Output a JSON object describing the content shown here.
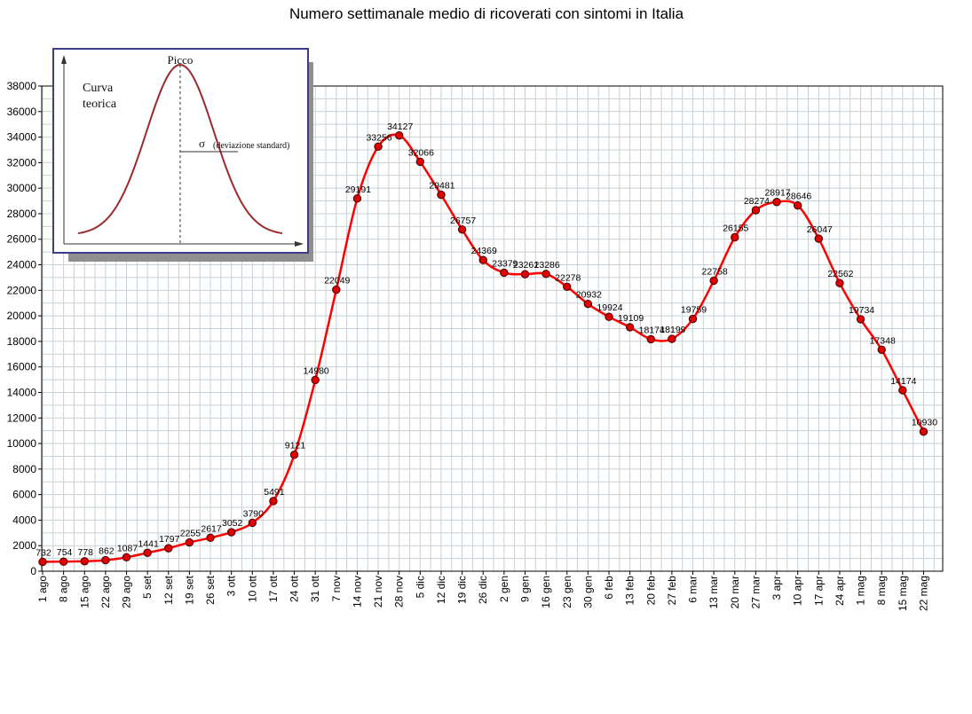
{
  "chart_data": {
    "type": "line",
    "title": "Numero settimanale medio di ricoverati con sintomi in Italia",
    "xlabel": "",
    "ylabel": "",
    "ylim": [
      0,
      38000
    ],
    "ytick_step": 2000,
    "grid": true,
    "categories": [
      "1 ago",
      "8 ago",
      "15 ago",
      "22 ago",
      "29 ago",
      "5 set",
      "12 set",
      "19 set",
      "26 set",
      "3 ott",
      "10 ott",
      "17 ott",
      "24 ott",
      "31 ott",
      "7 nov",
      "14 nov",
      "21 nov",
      "28 nov",
      "5 dic",
      "12 dic",
      "19 dic",
      "26 dic",
      "2 gen",
      "9 gen",
      "16 gen",
      "23 gen",
      "30 gen",
      "6 feb",
      "13 feb",
      "20 feb",
      "27 feb",
      "6 mar",
      "13 mar",
      "20 mar",
      "27 mar",
      "3 apr",
      "10 apr",
      "17 apr",
      "24 apr",
      "1 mag",
      "8 mag",
      "15 mag",
      "22 mag"
    ],
    "series": [
      {
        "color": "#ff0000",
        "marker_color": "#e00000",
        "values": [
          732,
          754,
          778,
          862,
          1087,
          1441,
          1797,
          2255,
          2617,
          3052,
          3790,
          5491,
          9121,
          14980,
          22049,
          29191,
          33256,
          34127,
          32066,
          29481,
          26757,
          24369,
          23379,
          23261,
          23286,
          22278,
          20932,
          19924,
          19109,
          18174,
          18199,
          19759,
          22758,
          26155,
          28274,
          28917,
          28646,
          26047,
          22562,
          19734,
          17348,
          14174,
          10930
        ]
      }
    ]
  },
  "inset": {
    "peak_label": "Picco",
    "curve_label_line1": "Curva",
    "curve_label_line2": "teorica",
    "sigma_symbol": "σ",
    "sigma_label": "(deviazione standard)",
    "border_color": "#3c3c8c",
    "curve_color": "#9b2a2a"
  }
}
